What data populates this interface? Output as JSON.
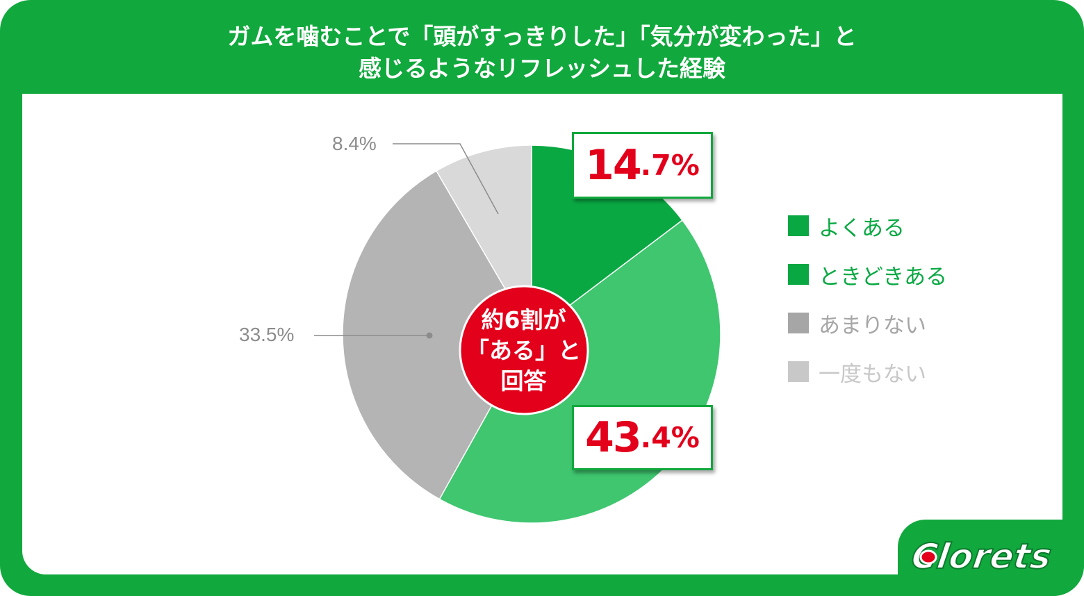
{
  "title": {
    "line1": "ガムを噛むことで「頭がすっきりした」「気分が変わった」と",
    "line2": "感じるようなリフレッシュした経験"
  },
  "center_label": {
    "line1": "約6割が",
    "line2": "「ある」と",
    "line3": "回答"
  },
  "callouts": [
    {
      "big": "14",
      "small": ".7%"
    },
    {
      "big": "43",
      "small": ".4%"
    }
  ],
  "outer_labels": {
    "rarely": "33.5%",
    "never": "8.4%"
  },
  "colors": {
    "brand_green": "#11a83d",
    "often": "#0aa843",
    "sometimes": "#3fc66f",
    "rarely": "#b4b4b4",
    "never": "#d9d9d9",
    "highlight_red": "#e2001b",
    "label_gray": "#8c8c8c"
  },
  "logo": {
    "text": "Clorets"
  },
  "chart_data": {
    "type": "pie",
    "title": "ガムを噛むことで「頭がすっきりした」「気分が変わった」と感じるようなリフレッシュした経験",
    "start_angle": "12 o'clock",
    "direction": "clockwise",
    "legend_position": "right",
    "slices": [
      {
        "label": "よくある",
        "value": 14.7,
        "value_label": "14.7%",
        "color": "#0aa843",
        "legend_color": "#0aa843"
      },
      {
        "label": "ときどきある",
        "value": 43.4,
        "value_label": "43.4%",
        "color": "#3fc66f",
        "legend_color": "#0aa843"
      },
      {
        "label": "あまりない",
        "value": 33.5,
        "value_label": "33.5%",
        "color": "#b4b4b4",
        "legend_color": "#a6a6a6"
      },
      {
        "label": "一度もない",
        "value": 8.4,
        "value_label": "8.4%",
        "color": "#d9d9d9",
        "legend_color": "#c8c8c8"
      }
    ],
    "annotation": "約6割が「ある」と回答"
  }
}
